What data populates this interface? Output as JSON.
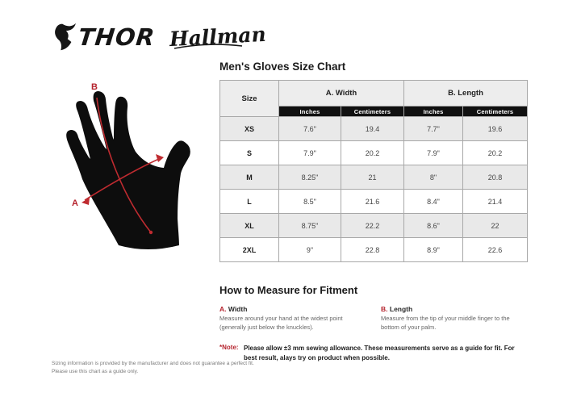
{
  "brand": {
    "thor": "THOR",
    "hallman": "Hallman"
  },
  "size_chart": {
    "title": "Men's Gloves Size Chart",
    "col_size": "Size",
    "col_width": "A. Width",
    "col_length": "B. Length",
    "sub_inches": "Inches",
    "sub_cm": "Centimeters",
    "rows": [
      {
        "size": "XS",
        "width_in": "7.6\"",
        "width_cm": "19.4",
        "length_in": "7.7\"",
        "length_cm": "19.6"
      },
      {
        "size": "S",
        "width_in": "7.9\"",
        "width_cm": "20.2",
        "length_in": "7.9\"",
        "length_cm": "20.2"
      },
      {
        "size": "M",
        "width_in": "8.25\"",
        "width_cm": "21",
        "length_in": "8\"",
        "length_cm": "20.8"
      },
      {
        "size": "L",
        "width_in": "8.5\"",
        "width_cm": "21.6",
        "length_in": "8.4\"",
        "length_cm": "21.4"
      },
      {
        "size": "XL",
        "width_in": "8.75\"",
        "width_cm": "22.2",
        "length_in": "8.6\"",
        "length_cm": "22"
      },
      {
        "size": "2XL",
        "width_in": "9\"",
        "width_cm": "22.8",
        "length_in": "8.9\"",
        "length_cm": "22.6"
      }
    ]
  },
  "diagram": {
    "label_a": "A",
    "label_b": "B"
  },
  "fitment": {
    "heading": "How to Measure for Fitment",
    "width": {
      "label": "A.",
      "title": "Width",
      "text": "Measure around your hand at the widest point (generally just below the knuckles)."
    },
    "length": {
      "label": "B.",
      "title": "Length",
      "text": "Measure from the tip of your middle finger to the bottom of your palm."
    },
    "note_label": "*Note:",
    "note_text": "Please allow ±3 mm sewing allowance. These measurements serve as a guide for fit. For best result, alays try on product when possible."
  },
  "footer": {
    "disclaimer": "Sizing information is provided by the manufacturer and does not guarantee a perfect fit. Please use this chart as a guide only."
  },
  "colors": {
    "accent_red": "#b5232d",
    "diagram_red": "#bf2b30",
    "header_bg": "#ededed",
    "subheader_bg": "#101010",
    "row_alt_bg": "#e9e9e9",
    "border": "#a8a8a8"
  }
}
